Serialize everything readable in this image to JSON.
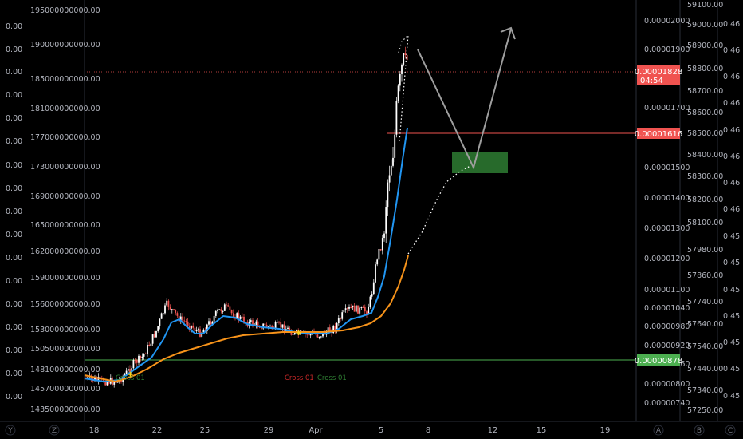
{
  "chart_data": {
    "type": "candlestick",
    "x_ticks": [
      "18",
      "22",
      "25",
      "29",
      "Apr",
      "5",
      "8",
      "12",
      "15",
      "19"
    ],
    "axis_far_left": [
      "0.00",
      "0.00",
      "0.00",
      "0.00",
      "0.00",
      "0.00",
      "0.00",
      "0.00",
      "0.00",
      "0.00",
      "0.00",
      "0.00",
      "0.00",
      "0.00",
      "0.00",
      "0.00",
      "0.00",
      "0.00"
    ],
    "axis_left": [
      "195000000000.00",
      "190000000000.00",
      "185000000000.00",
      "181000000000.00",
      "177000000000.00",
      "173000000000.00",
      "169000000000.00",
      "165000000000.00",
      "162000000000.00",
      "159000000000.00",
      "156000000000.00",
      "153000000000.00",
      "150500000000.00",
      "148100000000.00",
      "145700000000.00",
      "143500000000.00"
    ],
    "axis_main": [
      "0.00002000",
      "0.00001900",
      "0.00001700",
      "0.00001500",
      "0.00001400",
      "0.00001300",
      "0.00001200",
      "0.00001100",
      "0.00001040",
      "0.00000980",
      "0.00000920",
      "0.00000860",
      "0.00000800",
      "0.00000740"
    ],
    "axis_r2": [
      "59100.00",
      "59000.00",
      "58900.00",
      "58800.00",
      "58700.00",
      "58600.00",
      "58500.00",
      "58400.00",
      "58300.00",
      "58200.00",
      "58100.00",
      "57980.00",
      "57860.00",
      "57740.00",
      "57640.00",
      "57540.00",
      "57440.00",
      "57340.00",
      "57250.00"
    ],
    "axis_r3": [
      "0.46",
      "0.46",
      "0.46",
      "0.46",
      "0.46",
      "0.46",
      "0.46",
      "0.46",
      "0.45",
      "0.45",
      "0.45",
      "0.45",
      "0.45",
      "0.45",
      "0.45",
      "0.45",
      "0.45",
      "0.45",
      "0.45"
    ],
    "price_current": "0.00001828",
    "countdown": "04:54",
    "level_resistance": "0.00001616",
    "level_support": "0.00000878",
    "annotations": [
      {
        "text": "Cross 01",
        "color": "#c62828"
      },
      {
        "text": "Cross 01",
        "color": "#2e7d32"
      }
    ],
    "corner_labels": {
      "y": "Y",
      "z": "Z",
      "a": "A",
      "b": "B",
      "c": "C"
    },
    "colors": {
      "up": "#ffffff",
      "down": "#ef5350",
      "ema_fast": "#2196f3",
      "ema_slow": "#f7931a",
      "current_line": "#f05350",
      "support_line": "#4caf50",
      "zone": "#3a8a3a"
    }
  }
}
